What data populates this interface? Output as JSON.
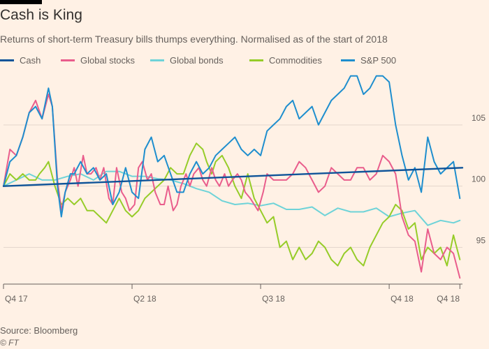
{
  "header": {
    "title": "Cash is King",
    "subtitle": "Returns of short-term Treasury bills thumps everything. Normalised as of the start of 2018"
  },
  "footer": {
    "source": "Source: Bloomberg",
    "credit": "© FT"
  },
  "colors": {
    "background": "#fff1e5",
    "grid": "#e3d5ca",
    "axis_text": "#66605c"
  },
  "chart_data": {
    "type": "line",
    "title": "Cash is King",
    "subtitle": "Returns of short-term Treasury bills thumps everything. Normalised as of the start of 2018",
    "xlabel": "",
    "ylabel": "",
    "x_ticks": [
      {
        "label": "Q4 17",
        "t": 0
      },
      {
        "label": "Q2 18",
        "t": 100
      },
      {
        "label": "Q3 18",
        "t": 200
      },
      {
        "label": "Q4 18",
        "t": 300
      },
      {
        "label": "Q4 18",
        "t": 355
      }
    ],
    "xlim": [
      0,
      357
    ],
    "y_ticks": [
      95,
      100,
      105
    ],
    "ylim": [
      92,
      109.5
    ],
    "grid": true,
    "legend_position": "top",
    "series": [
      {
        "name": "Cash",
        "color": "#0f5499",
        "width": 2.4,
        "x": [
          0,
          357
        ],
        "y": [
          100,
          101.5
        ]
      },
      {
        "name": "Global stocks",
        "color": "#e95d8c",
        "width": 2,
        "x": [
          0,
          5,
          10,
          15,
          20,
          25,
          30,
          35,
          38,
          42,
          45,
          48,
          52,
          55,
          58,
          62,
          65,
          68,
          72,
          75,
          78,
          82,
          85,
          88,
          92,
          95,
          98,
          102,
          105,
          108,
          112,
          115,
          118,
          122,
          125,
          128,
          132,
          135,
          138,
          142,
          145,
          148,
          152,
          155,
          158,
          162,
          165,
          168,
          172,
          175,
          178,
          182,
          185,
          188,
          192,
          195,
          198,
          202,
          205,
          210,
          215,
          220,
          225,
          230,
          235,
          240,
          245,
          250,
          255,
          260,
          265,
          270,
          275,
          280,
          285,
          290,
          295,
          300,
          305,
          310,
          315,
          320,
          325,
          330,
          335,
          340,
          345,
          350,
          355
        ],
        "y": [
          100,
          103,
          102.5,
          104,
          106,
          107,
          105.5,
          107.5,
          106.5,
          100.5,
          98,
          99.5,
          100.5,
          101.5,
          100,
          102.5,
          101,
          101,
          101.5,
          100.5,
          101.5,
          99,
          98.5,
          101.5,
          99.5,
          99,
          98,
          98.5,
          101.5,
          102,
          100.5,
          101,
          99.5,
          98.5,
          98.5,
          100,
          98,
          98.5,
          100,
          101,
          100,
          101,
          101.5,
          100.5,
          100,
          101.5,
          100.5,
          100,
          101,
          100,
          100.5,
          101,
          100.5,
          99.5,
          99,
          98.5,
          98,
          99.5,
          101,
          100.5,
          100.5,
          100.5,
          101,
          102,
          101.5,
          100.5,
          99.5,
          100,
          101.5,
          101,
          100.5,
          100.5,
          101.5,
          101.5,
          100.5,
          101,
          102.5,
          102,
          101,
          97.5,
          96,
          95.5,
          93,
          96.5,
          94.5,
          94,
          95,
          94.5,
          92.5
        ]
      },
      {
        "name": "Global bonds",
        "color": "#6ed3d8",
        "width": 2,
        "x": [
          0,
          10,
          20,
          30,
          40,
          50,
          60,
          70,
          80,
          90,
          100,
          110,
          120,
          130,
          140,
          150,
          160,
          170,
          180,
          190,
          200,
          210,
          220,
          230,
          240,
          250,
          260,
          270,
          280,
          290,
          300,
          310,
          320,
          330,
          340,
          350,
          355
        ],
        "y": [
          100,
          100.5,
          101,
          100.5,
          100.5,
          100.8,
          101,
          100.5,
          101.2,
          101.2,
          100.8,
          100.8,
          100.6,
          100.5,
          100.2,
          99.8,
          99.5,
          98.8,
          98.5,
          98.6,
          98.4,
          98.6,
          98.1,
          98.1,
          98.3,
          97.6,
          98.2,
          97.9,
          97.9,
          98.2,
          97.5,
          97.8,
          98,
          96.8,
          97.2,
          97,
          97.2
        ]
      },
      {
        "name": "Commodities",
        "color": "#96cc28",
        "width": 2,
        "x": [
          0,
          5,
          10,
          15,
          20,
          25,
          28,
          32,
          35,
          40,
          45,
          50,
          55,
          60,
          65,
          70,
          75,
          80,
          85,
          90,
          95,
          100,
          105,
          110,
          115,
          120,
          125,
          130,
          135,
          140,
          145,
          150,
          155,
          158,
          162,
          165,
          170,
          175,
          180,
          185,
          190,
          195,
          200,
          205,
          210,
          215,
          220,
          225,
          230,
          235,
          240,
          245,
          250,
          255,
          260,
          265,
          270,
          275,
          280,
          285,
          290,
          295,
          300,
          305,
          310,
          315,
          320,
          325,
          330,
          335,
          340,
          345,
          350,
          355
        ],
        "y": [
          100,
          101,
          100.5,
          101,
          100.5,
          100.5,
          101,
          101.5,
          102,
          100,
          98.5,
          99,
          98.5,
          99,
          98,
          98,
          97.5,
          97,
          98,
          99,
          98,
          97.5,
          98,
          99,
          99.5,
          100,
          100.5,
          101.5,
          101,
          101,
          102.5,
          103.5,
          103,
          102,
          101,
          102,
          102.5,
          101.5,
          100,
          99,
          101,
          99,
          98,
          97,
          97.5,
          95,
          95.5,
          94,
          95,
          94,
          94.5,
          95.5,
          95,
          94,
          93.5,
          94.5,
          95,
          94,
          93.5,
          95,
          96,
          97,
          97.5,
          98.5,
          98,
          96.5,
          97,
          94,
          95,
          94.5,
          95,
          93.5,
          96,
          94
        ]
      },
      {
        "name": "S&P 500",
        "color": "#1e8ece",
        "width": 2,
        "x": [
          0,
          5,
          10,
          15,
          20,
          25,
          30,
          35,
          38,
          42,
          45,
          48,
          52,
          55,
          60,
          65,
          70,
          75,
          80,
          85,
          90,
          95,
          100,
          105,
          110,
          115,
          120,
          125,
          130,
          135,
          140,
          145,
          150,
          155,
          160,
          165,
          170,
          175,
          180,
          185,
          190,
          195,
          200,
          205,
          210,
          215,
          220,
          225,
          230,
          235,
          240,
          245,
          250,
          255,
          260,
          265,
          270,
          275,
          280,
          285,
          290,
          295,
          300,
          305,
          310,
          315,
          320,
          325,
          330,
          335,
          340,
          345,
          350,
          355
        ],
        "y": [
          100,
          102,
          102.5,
          104,
          106,
          106.5,
          105.5,
          108,
          106.5,
          100,
          97.5,
          99.5,
          101,
          101,
          102,
          101,
          101.5,
          100.5,
          101,
          98.5,
          99.5,
          101.5,
          99.5,
          99,
          103,
          104,
          102,
          102.5,
          101,
          99.5,
          99.5,
          101,
          102,
          101,
          101.5,
          102.5,
          103,
          103.5,
          104,
          103,
          102.5,
          103,
          102.5,
          104.5,
          105,
          105.5,
          106.5,
          107,
          105.5,
          106,
          106.5,
          105,
          106,
          107,
          107.5,
          108,
          109,
          109,
          107.5,
          108,
          109,
          109,
          108.5,
          105,
          102.5,
          100.5,
          101.5,
          99.5,
          104,
          102,
          101,
          101.5,
          102,
          99
        ]
      }
    ]
  }
}
